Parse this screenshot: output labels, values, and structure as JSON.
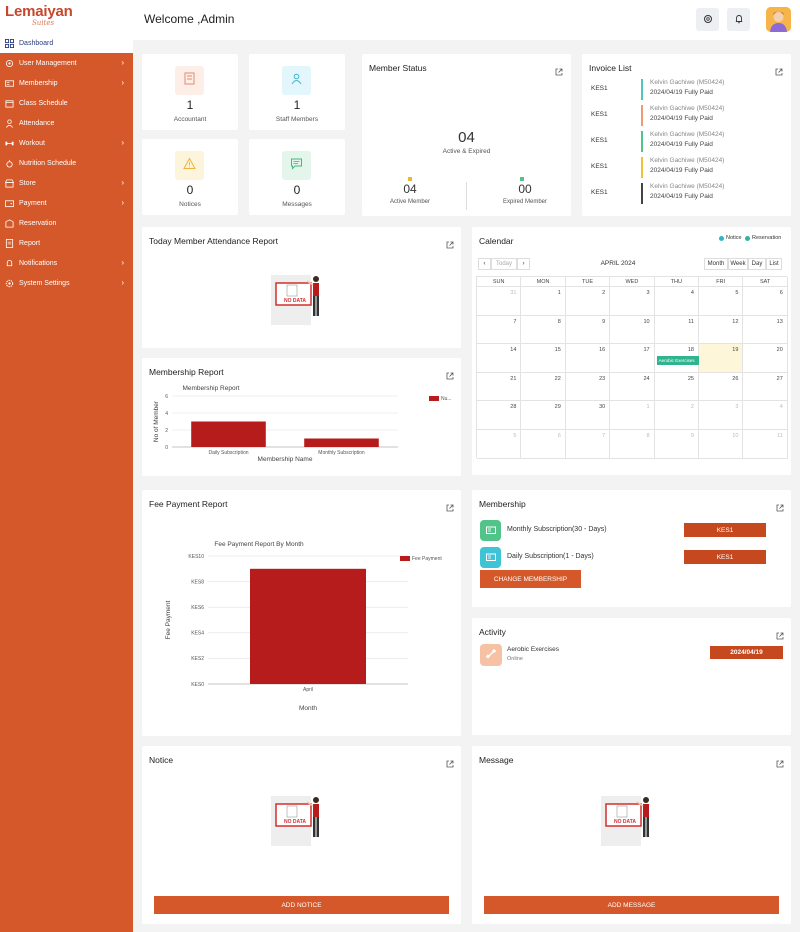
{
  "sidebar": {
    "logo_main": "Lemaiyan",
    "logo_sub": "Suites",
    "active": "Dashboard",
    "items": [
      {
        "label": "User Management",
        "icon": "user-cog-icon",
        "chevron": true
      },
      {
        "label": "Membership",
        "icon": "id-card-icon",
        "chevron": true
      },
      {
        "label": "Class Schedule",
        "icon": "calendar-icon",
        "chevron": false
      },
      {
        "label": "Attendance",
        "icon": "person-icon",
        "chevron": false
      },
      {
        "label": "Workout",
        "icon": "dumbbell-icon",
        "chevron": true
      },
      {
        "label": "Nutrition Schedule",
        "icon": "apple-icon",
        "chevron": false
      },
      {
        "label": "Store",
        "icon": "store-icon",
        "chevron": true
      },
      {
        "label": "Payment",
        "icon": "wallet-icon",
        "chevron": true
      },
      {
        "label": "Reservation",
        "icon": "reservation-icon",
        "chevron": false
      },
      {
        "label": "Report",
        "icon": "report-icon",
        "chevron": false
      },
      {
        "label": "Notifications",
        "icon": "bell-icon",
        "chevron": true
      },
      {
        "label": "System Settings",
        "icon": "gear-icon",
        "chevron": true
      }
    ]
  },
  "header": {
    "welcome": "Welcome ,Admin"
  },
  "stats": [
    {
      "count": "1",
      "label": "Accountant",
      "icon": "accountant-icon",
      "bg": "#fdeee8",
      "fg": "#e28b70"
    },
    {
      "count": "1",
      "label": "Staff Members",
      "icon": "staff-icon",
      "bg": "#e2f6fb",
      "fg": "#3fb6d3"
    },
    {
      "count": "0",
      "label": "Notices",
      "icon": "warning-icon",
      "bg": "#fdf4dc",
      "fg": "#efb43a"
    },
    {
      "count": "0",
      "label": "Messages",
      "icon": "message-icon",
      "bg": "#e4f6ec",
      "fg": "#47b77c"
    }
  ],
  "member_status": {
    "title": "Member Status",
    "total": "04",
    "total_label": "Active & Expired",
    "active": "04",
    "active_label": "Active Member",
    "expired": "00",
    "expired_label": "Expired Member"
  },
  "invoice": {
    "title": "Invoice List",
    "rows": [
      {
        "amount": "KES1",
        "name": "Kelvin Gachiwe (M50424)",
        "status": "2024/04/19 Fully Paid",
        "color": "#4cc7c0"
      },
      {
        "amount": "KES1",
        "name": "Kelvin Gachiwe (M50424)",
        "status": "2024/04/19 Fully Paid",
        "color": "#f09a72"
      },
      {
        "amount": "KES1",
        "name": "Kelvin Gachiwe (M50424)",
        "status": "2024/04/19 Fully Paid",
        "color": "#52c48a"
      },
      {
        "amount": "KES1",
        "name": "Kelvin Gachiwe (M50424)",
        "status": "2024/04/19 Fully Paid",
        "color": "#f1c233"
      },
      {
        "amount": "KES1",
        "name": "Kelvin Gachiwe (M50424)",
        "status": "2024/04/19 Fully Paid",
        "color": "#444444"
      }
    ]
  },
  "attendance": {
    "title": "Today Member Attendance Report",
    "nodata": "NO DATA"
  },
  "membership_report": {
    "title": "Membership Report"
  },
  "fee_report": {
    "title": "Fee Payment Report"
  },
  "calendar": {
    "title": "Calendar",
    "legend_notice": "Notice",
    "legend_reservation": "Reservation",
    "today": "Today",
    "month_title": "APRIL 2024",
    "views": [
      "Month",
      "Week",
      "Day",
      "List"
    ],
    "weekdays": [
      "SUN",
      "MON",
      "TUE",
      "WED",
      "THU",
      "FRI",
      "SAT"
    ],
    "weeks": [
      [
        "31",
        "1",
        "2",
        "3",
        "4",
        "5",
        "6"
      ],
      [
        "7",
        "8",
        "9",
        "10",
        "11",
        "12",
        "13"
      ],
      [
        "14",
        "15",
        "16",
        "17",
        "18",
        "19",
        "20"
      ],
      [
        "21",
        "22",
        "23",
        "24",
        "25",
        "26",
        "27"
      ],
      [
        "28",
        "29",
        "30",
        "1",
        "2",
        "3",
        "4"
      ],
      [
        "5",
        "6",
        "7",
        "8",
        "9",
        "10",
        "11"
      ]
    ],
    "event": "Aerobic Exercises"
  },
  "membership": {
    "title": "Membership",
    "items": [
      {
        "name": "Monthly Subscription(30 - Days)",
        "price": "KES1",
        "bg": "#52c48a",
        "icon": "card-icon"
      },
      {
        "name": "Daily Subscription(1 - Days)",
        "price": "KES1",
        "bg": "#3fc3d6",
        "icon": "card-icon"
      }
    ],
    "button": "CHANGE MEMBERSHIP"
  },
  "activity": {
    "title": "Activity",
    "name": "Aerobic Exercises",
    "type": "Online",
    "date": "2024/04/19"
  },
  "notice": {
    "title": "Notice",
    "nodata": "NO DATA",
    "button": "ADD NOTICE"
  },
  "message": {
    "title": "Message",
    "nodata": "NO DATA",
    "button": "ADD MESSAGE"
  },
  "chart_data": [
    {
      "type": "bar",
      "title": "Membership Report",
      "categories": [
        "Daily Subscription",
        "Monthly Subscription"
      ],
      "series": [
        {
          "name": "Nu...",
          "values": [
            3,
            1
          ]
        }
      ],
      "xlabel": "Membership Name",
      "ylabel": "No of Member",
      "yticks": [
        "0",
        "2",
        "4",
        "6"
      ],
      "ylim": [
        0,
        6
      ],
      "color": "#b71c1c"
    },
    {
      "type": "bar",
      "title": "Fee Payment Report By Month",
      "categories": [
        "April"
      ],
      "series": [
        {
          "name": "Fee Payment",
          "values": [
            9
          ]
        }
      ],
      "xlabel": "Month",
      "ylabel": "Fee Payment",
      "yticks": [
        "KES0",
        "KES2",
        "KES4",
        "KES6",
        "KES8",
        "KES10"
      ],
      "ylim": [
        0,
        10
      ],
      "color": "#b71c1c"
    }
  ]
}
